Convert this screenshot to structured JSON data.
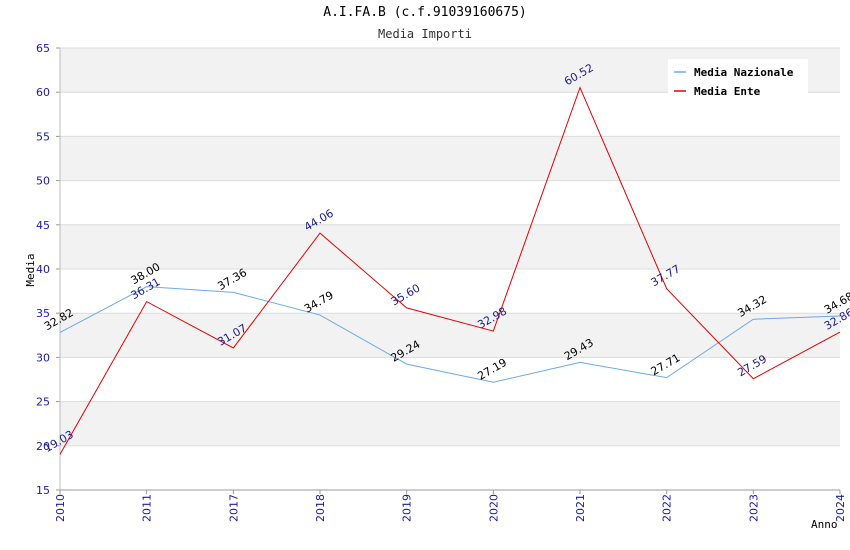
{
  "chart_data": {
    "type": "line",
    "title": "A.I.FA.B (c.f.91039160675)",
    "subtitle": "Media Importi",
    "xlabel": "Anno",
    "ylabel": "Media",
    "ylim": [
      15,
      65
    ],
    "yticks": [
      15,
      20,
      25,
      30,
      35,
      40,
      45,
      50,
      55,
      60,
      65
    ],
    "categories": [
      "2010",
      "2011",
      "2017",
      "2018",
      "2019",
      "2020",
      "2021",
      "2022",
      "2023",
      "2024"
    ],
    "series": [
      {
        "name": "Media Nazionale",
        "color": "#6aaae6",
        "label_color": "#000000",
        "values": [
          32.82,
          38.0,
          37.36,
          34.79,
          29.24,
          27.19,
          29.43,
          27.71,
          34.32,
          34.68
        ],
        "labels": [
          "32.82",
          "38.00",
          "37.36",
          "34.79",
          "29.24",
          "27.19",
          "29.43",
          "27.71",
          "34.32",
          "34.68"
        ]
      },
      {
        "name": "Media Ente",
        "color": "#e60000",
        "label_color": "#1a1a8c",
        "values": [
          19.03,
          36.31,
          31.07,
          44.06,
          35.6,
          32.98,
          60.52,
          37.77,
          27.59,
          32.86
        ],
        "labels": [
          "19.03",
          "36.31",
          "31.07",
          "44.06",
          "35.60",
          "32.98",
          "60.52",
          "37.77",
          "27.59",
          "32.86"
        ]
      }
    ],
    "legend_position": "top-right",
    "grid": true
  }
}
